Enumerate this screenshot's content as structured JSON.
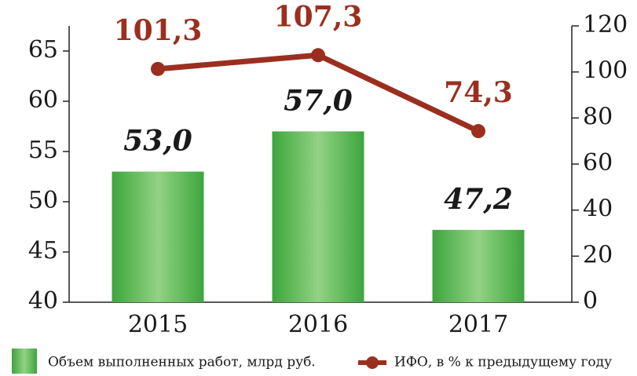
{
  "chart_data": {
    "type": "bar",
    "categories": [
      "2015",
      "2016",
      "2017"
    ],
    "series": [
      {
        "name": "Объем выполненных работ, млрд руб.",
        "type": "bar",
        "color": "#5cb85c",
        "values": [
          53.0,
          57.0,
          47.2
        ],
        "value_labels": [
          "53,0",
          "57,0",
          "47,2"
        ]
      },
      {
        "name": "ИФО, в % к предыдущему году",
        "type": "line",
        "axis": "y2",
        "color": "#9b2f1f",
        "values": [
          101.3,
          107.3,
          74.3
        ],
        "value_labels": [
          "101,3",
          "107,3",
          "74,3"
        ]
      }
    ],
    "ylim": [
      40,
      67.5
    ],
    "yticks": [
      40,
      45,
      50,
      55,
      60,
      65
    ],
    "y2lim": [
      0,
      120
    ],
    "y2ticks": [
      0,
      20,
      40,
      60,
      80,
      100,
      120
    ]
  }
}
